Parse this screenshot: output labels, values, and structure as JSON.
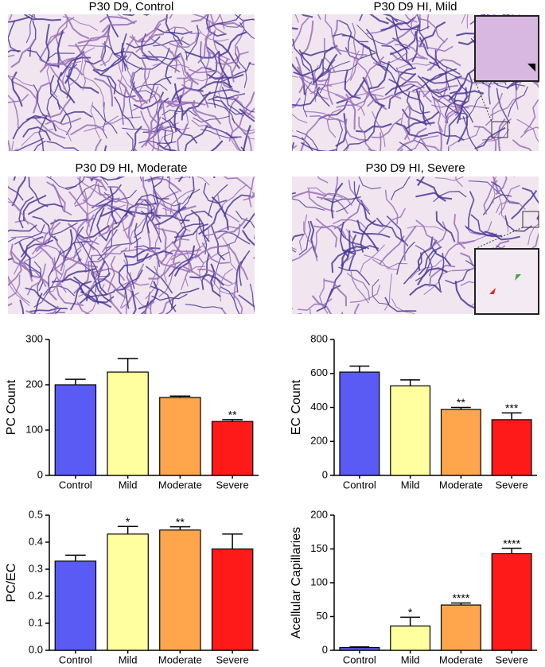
{
  "panels": [
    {
      "title": "P30 D9, Control"
    },
    {
      "title": "P30 D9 HI, Mild"
    },
    {
      "title": "P30 D9 HI, Moderate"
    },
    {
      "title": "P30 D9 HI, Severe"
    }
  ],
  "chart_data": [
    {
      "type": "bar",
      "ylabel": "PC Count",
      "categories": [
        "Control",
        "Mild",
        "Moderate",
        "Severe"
      ],
      "values": [
        200,
        228,
        172,
        119
      ],
      "errors": [
        12,
        30,
        3,
        4
      ],
      "annotations": [
        null,
        null,
        null,
        "**"
      ],
      "colors": [
        "#5a5af5",
        "#ffffa0",
        "#ffa64d",
        "#ff1a1a"
      ],
      "ylim": [
        0,
        300
      ],
      "yticks": [
        0,
        100,
        200,
        300
      ]
    },
    {
      "type": "bar",
      "ylabel": "EC Count",
      "categories": [
        "Control",
        "Mild",
        "Moderate",
        "Severe"
      ],
      "values": [
        608,
        527,
        388,
        328
      ],
      "errors": [
        35,
        35,
        12,
        40
      ],
      "annotations": [
        null,
        null,
        "**",
        "***"
      ],
      "colors": [
        "#5a5af5",
        "#ffffa0",
        "#ffa64d",
        "#ff1a1a"
      ],
      "ylim": [
        0,
        800
      ],
      "yticks": [
        0,
        200,
        400,
        600,
        800
      ]
    },
    {
      "type": "bar",
      "ylabel": "PC/EC",
      "categories": [
        "Control",
        "Mild",
        "Moderate",
        "Severe"
      ],
      "values": [
        0.33,
        0.43,
        0.445,
        0.375
      ],
      "errors": [
        0.022,
        0.028,
        0.012,
        0.055
      ],
      "annotations": [
        null,
        "*",
        "**",
        null
      ],
      "colors": [
        "#5a5af5",
        "#ffffa0",
        "#ffa64d",
        "#ff1a1a"
      ],
      "ylim": [
        0,
        0.5
      ],
      "yticks": [
        {
          "value": 0,
          "label": "0.0"
        },
        0.1,
        0.2,
        0.3,
        0.4,
        0.5
      ]
    },
    {
      "type": "bar",
      "ylabel": "Acellular Capillaries",
      "categories": [
        "Control",
        "Mild",
        "Moderate",
        "Severe"
      ],
      "values": [
        4,
        36,
        67,
        143
      ],
      "errors": [
        1,
        13,
        3,
        8
      ],
      "annotations": [
        null,
        "*",
        "****",
        "****"
      ],
      "colors": [
        "#5a5af5",
        "#ffffa0",
        "#ffa64d",
        "#ff1a1a"
      ],
      "ylim": [
        0,
        200
      ],
      "yticks": [
        0,
        50,
        100,
        150,
        200
      ]
    }
  ]
}
